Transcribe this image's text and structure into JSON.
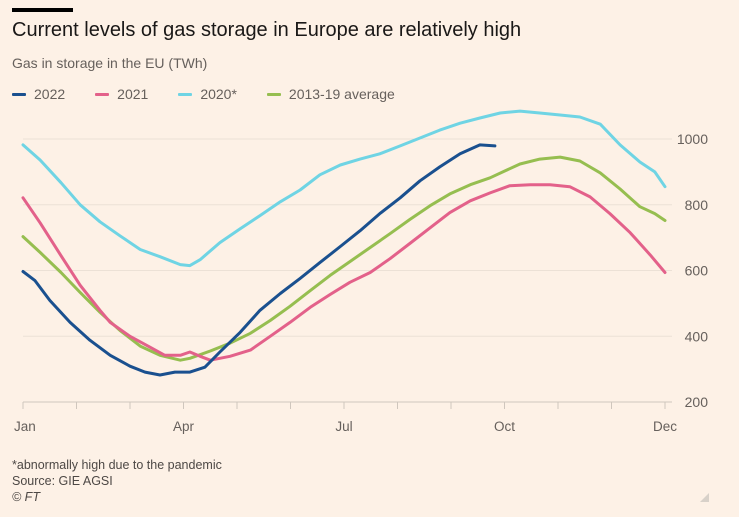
{
  "header": {
    "title": "Current levels of gas storage in Europe are relatively high",
    "subtitle": "Gas in storage in the EU (TWh)"
  },
  "footer": {
    "note": "*abnormally high due to the pandemic",
    "source": "Source: GIE AGSI",
    "copyright": "© FT"
  },
  "chart_data": {
    "type": "line",
    "title": "Current levels of gas storage in Europe are relatively high",
    "subtitle": "Gas in storage in the EU (TWh)",
    "xlabel": "",
    "ylabel": "TWh",
    "x_unit": "months since 1 Jan",
    "xlim": [
      0,
      12
    ],
    "ylim": [
      200,
      1000
    ],
    "yticks": [
      200,
      400,
      600,
      800,
      1000
    ],
    "xticks": [
      {
        "pos": 0,
        "label": "Jan"
      },
      {
        "pos": 3,
        "label": "Apr"
      },
      {
        "pos": 6,
        "label": "Jul"
      },
      {
        "pos": 9,
        "label": "Oct"
      },
      {
        "pos": 12,
        "label": "Dec"
      }
    ],
    "minor_xticks": [
      1,
      2,
      4,
      5,
      7,
      8,
      10,
      11
    ],
    "grid": true,
    "y_axis_side": "right",
    "legend_position": "top-left",
    "series": [
      {
        "name": "2020*",
        "color": "#6fd4e4",
        "points": [
          [
            0,
            982
          ],
          [
            0.32,
            936
          ],
          [
            0.71,
            867
          ],
          [
            1.07,
            800
          ],
          [
            1.44,
            748
          ],
          [
            1.81,
            706
          ],
          [
            2.19,
            664
          ],
          [
            2.56,
            642
          ],
          [
            2.94,
            618
          ],
          [
            3.12,
            615
          ],
          [
            3.31,
            633
          ],
          [
            3.68,
            685
          ],
          [
            4.06,
            727
          ],
          [
            4.43,
            767
          ],
          [
            4.81,
            809
          ],
          [
            5.18,
            845
          ],
          [
            5.55,
            891
          ],
          [
            5.93,
            921
          ],
          [
            6.3,
            939
          ],
          [
            6.67,
            955
          ],
          [
            7.05,
            979
          ],
          [
            7.42,
            1003
          ],
          [
            7.79,
            1027
          ],
          [
            8.17,
            1048
          ],
          [
            8.54,
            1064
          ],
          [
            8.92,
            1079
          ],
          [
            9.29,
            1085
          ],
          [
            9.66,
            1079
          ],
          [
            10.04,
            1073
          ],
          [
            10.41,
            1067
          ],
          [
            10.79,
            1045
          ],
          [
            11.16,
            982
          ],
          [
            11.53,
            930
          ],
          [
            11.81,
            900
          ],
          [
            12,
            855
          ]
        ]
      },
      {
        "name": "2013-19 average",
        "color": "#96be50",
        "points": [
          [
            0,
            703
          ],
          [
            0.32,
            655
          ],
          [
            0.71,
            594
          ],
          [
            1.07,
            533
          ],
          [
            1.44,
            473
          ],
          [
            1.81,
            418
          ],
          [
            2.19,
            370
          ],
          [
            2.56,
            342
          ],
          [
            2.94,
            327
          ],
          [
            3.12,
            333
          ],
          [
            3.5,
            355
          ],
          [
            3.87,
            379
          ],
          [
            4.25,
            409
          ],
          [
            4.62,
            448
          ],
          [
            4.99,
            491
          ],
          [
            5.37,
            539
          ],
          [
            5.74,
            585
          ],
          [
            6.11,
            627
          ],
          [
            6.49,
            670
          ],
          [
            6.86,
            712
          ],
          [
            7.23,
            755
          ],
          [
            7.61,
            797
          ],
          [
            7.98,
            833
          ],
          [
            8.36,
            861
          ],
          [
            8.73,
            882
          ],
          [
            9.01,
            903
          ],
          [
            9.29,
            924
          ],
          [
            9.66,
            939
          ],
          [
            10.04,
            945
          ],
          [
            10.41,
            933
          ],
          [
            10.79,
            897
          ],
          [
            11.16,
            848
          ],
          [
            11.53,
            794
          ],
          [
            11.81,
            773
          ],
          [
            12,
            752
          ]
        ]
      },
      {
        "name": "2021",
        "color": "#e3618a",
        "points": [
          [
            0,
            821
          ],
          [
            0.32,
            745
          ],
          [
            0.71,
            645
          ],
          [
            1.07,
            555
          ],
          [
            1.44,
            479
          ],
          [
            1.63,
            442
          ],
          [
            2.0,
            400
          ],
          [
            2.37,
            367
          ],
          [
            2.65,
            342
          ],
          [
            2.94,
            342
          ],
          [
            3.12,
            352
          ],
          [
            3.31,
            339
          ],
          [
            3.5,
            327
          ],
          [
            3.87,
            339
          ],
          [
            4.25,
            358
          ],
          [
            4.62,
            400
          ],
          [
            4.99,
            442
          ],
          [
            5.37,
            488
          ],
          [
            5.74,
            527
          ],
          [
            6.11,
            564
          ],
          [
            6.49,
            594
          ],
          [
            6.86,
            636
          ],
          [
            7.23,
            682
          ],
          [
            7.61,
            730
          ],
          [
            7.98,
            776
          ],
          [
            8.36,
            812
          ],
          [
            8.73,
            836
          ],
          [
            9.1,
            858
          ],
          [
            9.48,
            861
          ],
          [
            9.85,
            861
          ],
          [
            10.22,
            855
          ],
          [
            10.6,
            824
          ],
          [
            10.97,
            773
          ],
          [
            11.35,
            715
          ],
          [
            11.72,
            648
          ],
          [
            12,
            594
          ]
        ]
      },
      {
        "name": "2022",
        "color": "#1a508f",
        "points": [
          [
            0,
            597
          ],
          [
            0.22,
            570
          ],
          [
            0.5,
            509
          ],
          [
            0.88,
            442
          ],
          [
            1.25,
            388
          ],
          [
            1.63,
            342
          ],
          [
            2.0,
            309
          ],
          [
            2.28,
            291
          ],
          [
            2.56,
            282
          ],
          [
            2.84,
            291
          ],
          [
            3.12,
            291
          ],
          [
            3.4,
            306
          ],
          [
            3.68,
            352
          ],
          [
            4.06,
            412
          ],
          [
            4.43,
            479
          ],
          [
            4.81,
            530
          ],
          [
            5.18,
            576
          ],
          [
            5.55,
            624
          ],
          [
            5.93,
            673
          ],
          [
            6.3,
            721
          ],
          [
            6.67,
            773
          ],
          [
            7.05,
            821
          ],
          [
            7.42,
            873
          ],
          [
            7.79,
            915
          ],
          [
            8.17,
            955
          ],
          [
            8.54,
            982
          ],
          [
            8.82,
            979
          ]
        ]
      }
    ]
  }
}
